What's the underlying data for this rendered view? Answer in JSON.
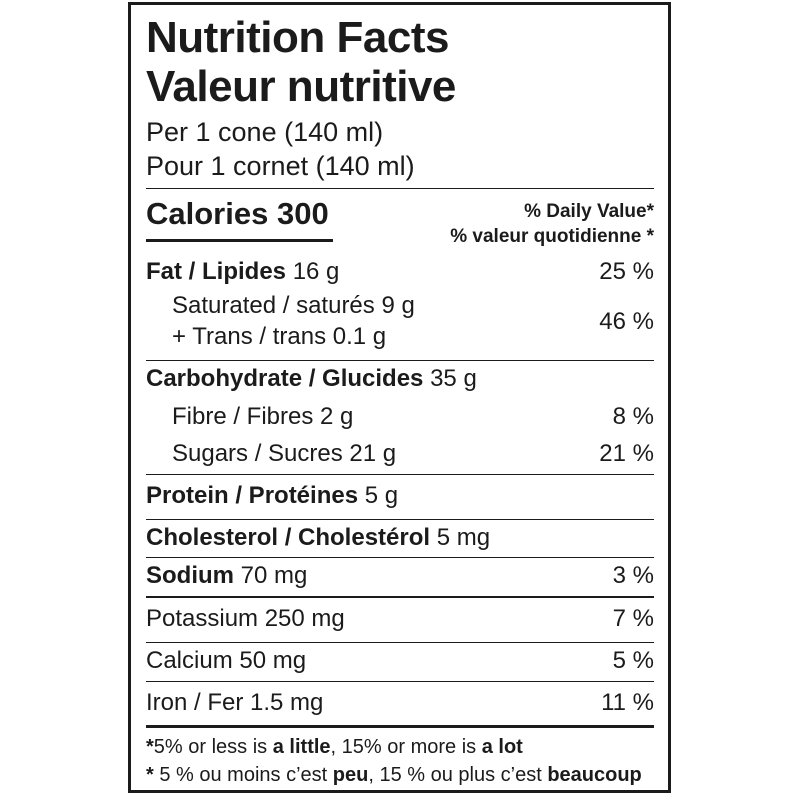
{
  "colors": {
    "text": "#1b1b1b",
    "background": "#ffffff",
    "border": "#1b1b1b"
  },
  "label": {
    "title_en": "Nutrition Facts",
    "title_fr": "Valeur nutritive",
    "serving_en": "Per 1 cone (140 ml)",
    "serving_fr": "Pour 1 cornet (140 ml)",
    "calories": {
      "word": "Calories",
      "value": "300"
    },
    "dv_header_en": "% Daily Value*",
    "dv_header_fr": "% valeur quotidienne *",
    "rows": {
      "fat": {
        "name": "Fat / Lipides",
        "amount": "16 g",
        "dv": "25 %"
      },
      "sat_trans": {
        "line1": "Saturated / saturés 9 g",
        "line2": "+ Trans / trans 0.1 g",
        "dv": "46 %"
      },
      "carbohydrate": {
        "name": "Carbohydrate / Glucides",
        "amount": "35 g"
      },
      "fibre": {
        "name": "Fibre / Fibres 2 g",
        "dv": "8 %"
      },
      "sugars": {
        "name": "Sugars / Sucres 21 g",
        "dv": "21 %"
      },
      "protein": {
        "name": "Protein / Protéines",
        "amount": "5 g"
      },
      "cholesterol": {
        "name": "Cholesterol / Cholestérol",
        "amount": "5 mg"
      },
      "sodium": {
        "name": "Sodium",
        "amount": "70 mg",
        "dv": "3 %"
      },
      "potassium": {
        "name": "Potassium 250 mg",
        "dv": "7 %"
      },
      "calcium": {
        "name": "Calcium 50 mg",
        "dv": "5 %"
      },
      "iron": {
        "name": "Iron / Fer 1.5 mg",
        "dv": "11 %"
      }
    },
    "footnote": {
      "en": {
        "star": "*",
        "t1": "5% or less is ",
        "b1": "a little",
        "t2": ", 15% or more is ",
        "b2": "a lot"
      },
      "fr": {
        "star": "* ",
        "t1": "5 % ou moins c’est ",
        "b1": "peu",
        "t2": ", 15 % ou plus c’est ",
        "b2": "beaucoup"
      }
    }
  }
}
